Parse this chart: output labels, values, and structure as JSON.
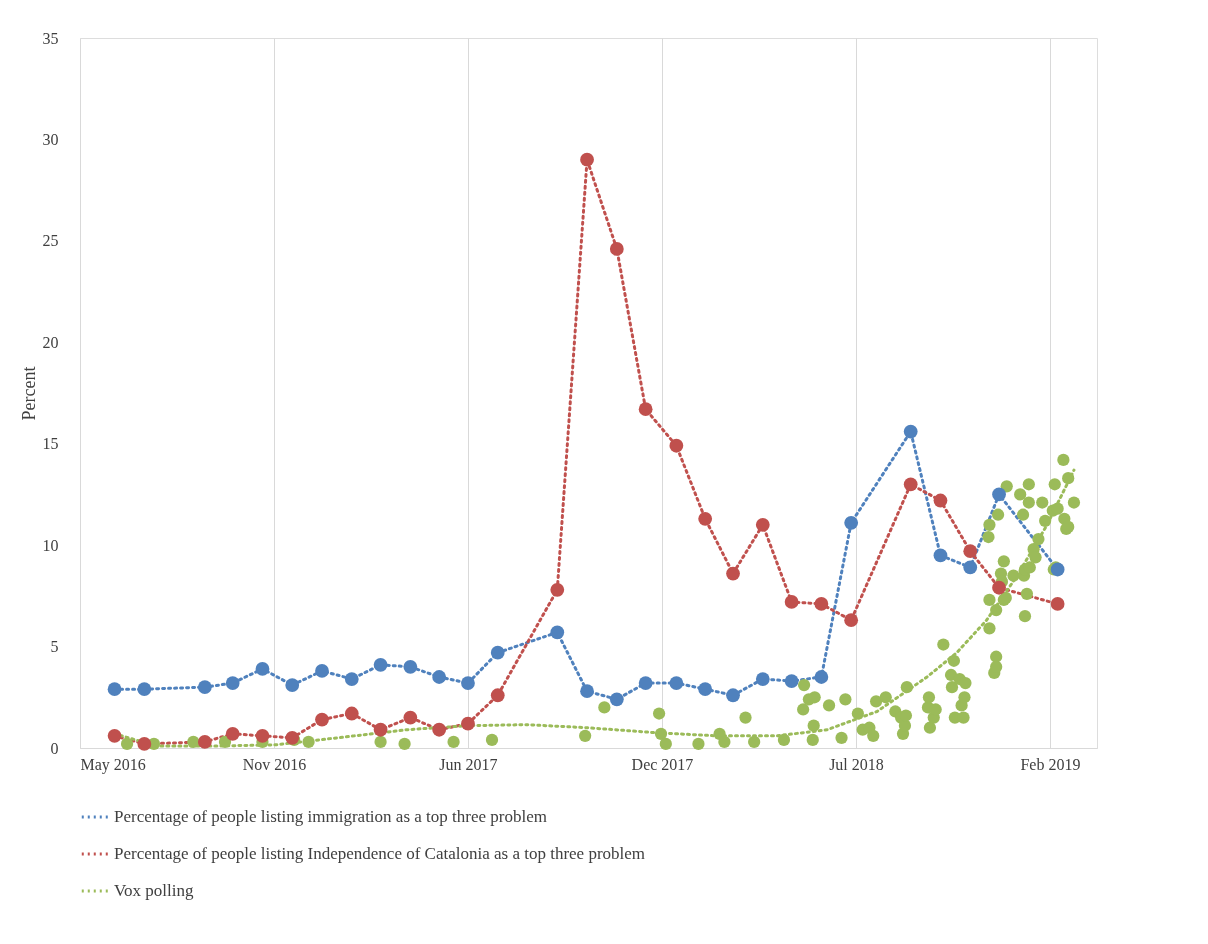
{
  "chart_data": {
    "type": "line",
    "ylabel": "Percent",
    "xlim": [
      "2016-05-01",
      "2019-03-26"
    ],
    "xticks": [
      {
        "value": "2016-05-01",
        "label": "May 2016"
      },
      {
        "value": "2016-11-19",
        "label": "Nov 2016"
      },
      {
        "value": "2017-06-09",
        "label": "Jun 2017"
      },
      {
        "value": "2017-12-28",
        "label": "Dec 2017"
      },
      {
        "value": "2018-07-18",
        "label": "Jul 2018"
      },
      {
        "value": "2019-02-05",
        "label": "Feb 2019"
      }
    ],
    "ylim": [
      0,
      35
    ],
    "yticks": [
      0,
      5,
      10,
      15,
      20,
      25,
      30,
      35
    ],
    "grid": "x",
    "legend": "bottom",
    "marker": "circle",
    "line_style": "dotted",
    "x": [
      "2016-06-06",
      "2016-07-07",
      "2016-09-08",
      "2016-10-07",
      "2016-11-07",
      "2016-12-08",
      "2017-01-08",
      "2017-02-08",
      "2017-03-10",
      "2017-04-10",
      "2017-05-10",
      "2017-06-09",
      "2017-07-10",
      "2017-09-10",
      "2017-10-11",
      "2017-11-11",
      "2017-12-11",
      "2018-01-12",
      "2018-02-11",
      "2018-03-12",
      "2018-04-12",
      "2018-05-12",
      "2018-06-12",
      "2018-07-13",
      "2018-09-13",
      "2018-10-14",
      "2018-11-14",
      "2018-12-14",
      "2019-02-13"
    ],
    "series": [
      {
        "name": "Percentage of people listing immigration as a top three problem",
        "color": "#4f81bd",
        "values": [
          2.9,
          2.9,
          3.0,
          3.2,
          3.9,
          3.1,
          3.8,
          3.4,
          4.1,
          4.0,
          3.5,
          3.2,
          4.7,
          5.7,
          2.8,
          2.4,
          3.2,
          3.2,
          2.9,
          2.6,
          3.4,
          3.3,
          3.5,
          11.1,
          15.6,
          9.5,
          8.9,
          12.5,
          8.8
        ]
      },
      {
        "name": "Percentage of people listing Independence of Catalonia as a top three problem",
        "color": "#c0504d",
        "values": [
          0.6,
          0.2,
          0.3,
          0.7,
          0.6,
          0.5,
          1.4,
          1.7,
          0.9,
          1.5,
          0.9,
          1.2,
          2.6,
          7.8,
          29.0,
          24.6,
          16.7,
          14.9,
          11.3,
          8.6,
          11.0,
          7.2,
          7.1,
          6.3,
          13.0,
          12.2,
          9.7,
          7.9,
          7.1
        ]
      },
      {
        "name": "Vox polling",
        "color": "#9bbb59",
        "marker": "none",
        "x": [
          "2016-06-06",
          "2016-07-20",
          "2016-09-21",
          "2016-11-19",
          "2017-01-24",
          "2017-04-06",
          "2017-06-09",
          "2017-08-09",
          "2017-10-11",
          "2017-12-23",
          "2018-02-23",
          "2018-04-27",
          "2018-06-18",
          "2018-08-09",
          "2018-09-30",
          "2018-10-31",
          "2018-12-01",
          "2019-01-02",
          "2019-02-02",
          "2019-03-02"
        ],
        "values": [
          0.7,
          0.1,
          0.1,
          0.15,
          0.5,
          0.9,
          1.1,
          1.15,
          1.0,
          0.75,
          0.6,
          0.6,
          0.9,
          1.8,
          3.5,
          4.7,
          6.3,
          8.5,
          11.0,
          13.7
        ]
      },
      {
        "type": "scatter",
        "color": "#9bbb59",
        "x": [
          "2016-06-19",
          "2016-07-17",
          "2016-08-27",
          "2016-09-29",
          "2016-11-07",
          "2016-12-10",
          "2016-12-25",
          "2017-03-10",
          "2017-04-04",
          "2017-05-25",
          "2017-07-04",
          "2017-10-09",
          "2017-10-29",
          "2017-12-25",
          "2017-12-27",
          "2018-01-01",
          "2018-02-04",
          "2018-02-26",
          "2018-03-03",
          "2018-03-25",
          "2018-04-03",
          "2018-05-04",
          "2018-05-25",
          "2018-05-24",
          "2018-05-30",
          "2018-06-04",
          "2018-06-05",
          "2018-06-03",
          "2018-06-20",
          "2018-07-03",
          "2018-07-07",
          "2018-07-20",
          "2018-07-25",
          "2018-08-01",
          "2018-08-05",
          "2018-08-08",
          "2018-08-18",
          "2018-08-28",
          "2018-09-03",
          "2018-09-05",
          "2018-09-07",
          "2018-09-08",
          "2018-09-09",
          "2018-10-01",
          "2018-10-02",
          "2018-10-03",
          "2018-10-07",
          "2018-10-09",
          "2018-10-17",
          "2018-10-25",
          "2018-10-26",
          "2018-10-28",
          "2018-10-29",
          "2018-11-03",
          "2018-11-05",
          "2018-11-07",
          "2018-11-08",
          "2018-11-09",
          "2018-12-04",
          "2018-12-04",
          "2018-12-03",
          "2018-12-04",
          "2018-12-09",
          "2018-12-11",
          "2018-12-11",
          "2018-12-11",
          "2018-12-13",
          "2018-12-16",
          "2018-12-17",
          "2018-12-19",
          "2018-12-19",
          "2018-12-21",
          "2018-12-22",
          "2018-12-29",
          "2019-01-05",
          "2019-01-08",
          "2019-01-09",
          "2019-01-10",
          "2019-01-10",
          "2019-01-12",
          "2019-01-14",
          "2019-01-14",
          "2019-01-15",
          "2019-01-19",
          "2019-01-21",
          "2019-01-24",
          "2019-01-28",
          "2019-01-31",
          "2019-02-08",
          "2019-02-09",
          "2019-02-10",
          "2019-02-11",
          "2019-02-13",
          "2019-02-19",
          "2019-02-20",
          "2019-02-22",
          "2019-02-24",
          "2019-02-24",
          "2019-03-02"
        ],
        "values": [
          0.2,
          0.2,
          0.3,
          0.3,
          0.3,
          0.4,
          0.3,
          0.3,
          0.2,
          0.3,
          0.4,
          0.6,
          2.0,
          1.7,
          0.7,
          0.2,
          0.2,
          0.7,
          0.3,
          1.5,
          0.3,
          0.4,
          3.1,
          1.9,
          2.4,
          1.1,
          2.5,
          0.4,
          2.1,
          0.5,
          2.4,
          1.7,
          0.9,
          1.0,
          0.6,
          2.3,
          2.5,
          1.8,
          1.5,
          0.7,
          1.1,
          1.6,
          3.0,
          2.0,
          2.5,
          1.0,
          1.5,
          1.9,
          5.1,
          3.6,
          3.0,
          4.3,
          1.5,
          3.4,
          2.1,
          1.5,
          2.5,
          3.2,
          5.9,
          7.3,
          10.4,
          11.0,
          3.7,
          4.5,
          4.0,
          6.8,
          11.5,
          8.6,
          8.2,
          9.2,
          7.3,
          7.4,
          12.9,
          8.5,
          12.5,
          11.5,
          8.5,
          6.5,
          8.8,
          7.6,
          13.0,
          12.1,
          8.9,
          9.8,
          9.4,
          10.3,
          12.1,
          11.2,
          11.7,
          8.8,
          13.0,
          8.9,
          11.8,
          14.2,
          11.3,
          10.8,
          13.3,
          10.9,
          12.1
        ]
      }
    ]
  }
}
